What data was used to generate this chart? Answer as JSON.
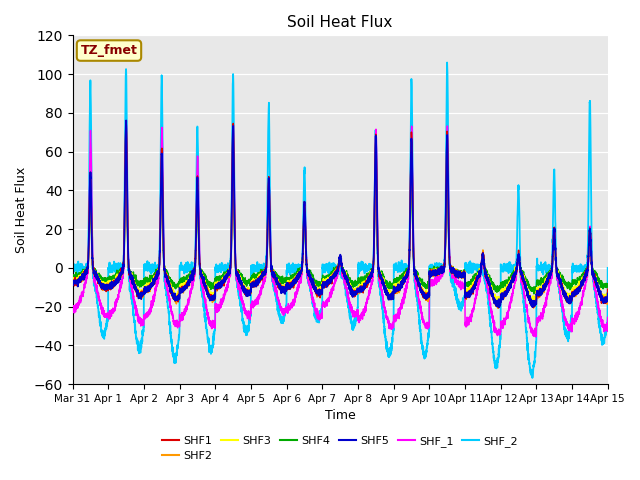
{
  "title": "Soil Heat Flux",
  "xlabel": "Time",
  "ylabel": "Soil Heat Flux",
  "ylim": [
    -60,
    120
  ],
  "yticks": [
    -60,
    -40,
    -20,
    0,
    20,
    40,
    60,
    80,
    100,
    120
  ],
  "plot_bg_color": "#e8e8e8",
  "annotation_text": "TZ_fmet",
  "annotation_bg": "#ffffcc",
  "annotation_border": "#aa8800",
  "annotation_text_color": "#880000",
  "series_colors": {
    "SHF1": "#dd0000",
    "SHF2": "#ff9900",
    "SHF3": "#ffff00",
    "SHF4": "#00aa00",
    "SHF5": "#0000cc",
    "SHF_1": "#ff00ff",
    "SHF_2": "#00ccff"
  },
  "tick_labels": [
    "Mar 31",
    "Apr 1",
    "Apr 2",
    "Apr 3",
    "Apr 4",
    "Apr 5",
    "Apr 6",
    "Apr 7",
    "Apr 8",
    "Apr 9",
    "Apr 10",
    "Apr 11",
    "Apr 12",
    "Apr 13",
    "Apr 14",
    "Apr 15"
  ],
  "n_days": 15,
  "samples_per_day": 288
}
